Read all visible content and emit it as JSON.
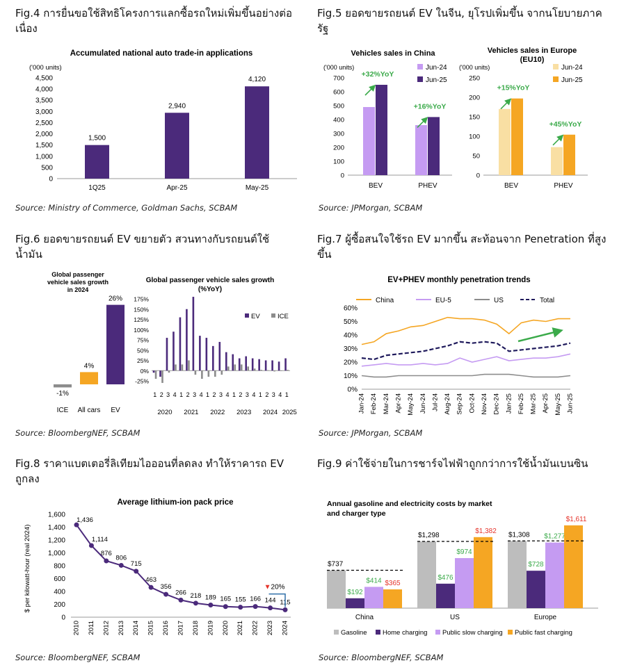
{
  "colors": {
    "purple": "#4B2A7B",
    "lavender": "#C59BF2",
    "orange": "#F5A623",
    "grey": "#BDBDBD",
    "cream": "#F9DFA3",
    "green": "#3BAA4A",
    "red": "#E5332A",
    "navy": "#1F1A5C",
    "midgrey": "#8C8C8C"
  },
  "fig4": {
    "title": "Fig.4 การยื่นขอใช้สิทธิโครงการแลกซื้อรถใหม่เพิ่มขึ้นอย่างต่อเนื่อง",
    "source": "Source: Ministry of Commerce, Goldman Sachs, SCBAM"
  },
  "fig5": {
    "title": "Fig.5 ยอดขายรถยนต์ EV ในจีน, ยุโรปเพิ่มขึ้น จากนโยบายภาครัฐ",
    "source": "Source: JPMorgan, SCBAM"
  },
  "fig6": {
    "title": "Fig.6 ยอดขายรถยนต์ EV ขยายตัว สวนทางกับรถยนต์ใช้น้ำมัน",
    "source": "Source: BloombergNEF, SCBAM"
  },
  "fig7": {
    "title": "Fig.7 ผู้ซื้อสนใจใช้รถ EV มากขึ้น สะท้อนจาก Penetration ที่สูงขึ้น",
    "source": "Source: JPMorgan, SCBAM"
  },
  "fig8": {
    "title": "Fig.8 ราคาแบตเตอรี่ลิเทียมไอออนที่ลดลง ทำให้ราคารถ EV ถูกลง",
    "source": "Source: BloombergNEF, SCBAM"
  },
  "fig9": {
    "title": "Fig.9 ค่าใช้จ่ายในการชาร์จไฟฟ้าถูกกว่าการใช้น้ำมันเบนซิน",
    "source": "Source: BloombergNEF, SCBAM"
  },
  "chart_data": [
    {
      "id": "c4",
      "type": "bar",
      "title": "Accumulated national auto trade-in applications",
      "ylabel": "('000 units)",
      "categories": [
        "1Q25",
        "Apr-25",
        "May-25"
      ],
      "values": [
        1500,
        2940,
        4120
      ],
      "labels": [
        "1,500",
        "2,940",
        "4,120"
      ],
      "ylim": [
        0,
        4500
      ],
      "yticks": [
        "0",
        "500",
        "1,000",
        "1,500",
        "2,000",
        "2,500",
        "3,000",
        "3,500",
        "4,000",
        "4,500"
      ]
    },
    {
      "id": "c5a",
      "type": "bar",
      "title": "Vehicles sales in China",
      "ylabel": "('000 units)",
      "categories": [
        "BEV",
        "PHEV"
      ],
      "series": [
        {
          "name": "Jun-24",
          "values": [
            490,
            360
          ]
        },
        {
          "name": "Jun-25",
          "values": [
            650,
            418
          ]
        }
      ],
      "ylim": [
        0,
        700
      ],
      "yticks": [
        "0",
        "100",
        "200",
        "300",
        "400",
        "500",
        "600",
        "700"
      ],
      "annotations": [
        "+32%YoY",
        "+16%YoY"
      ]
    },
    {
      "id": "c5b",
      "type": "bar",
      "title": "Vehicles sales in Europe (EU10)",
      "ylabel": "('000 units)",
      "categories": [
        "BEV",
        "PHEV"
      ],
      "series": [
        {
          "name": "Jun-24",
          "values": [
            170,
            72
          ]
        },
        {
          "name": "Jun-25",
          "values": [
            197,
            104
          ]
        }
      ],
      "ylim": [
        0,
        250
      ],
      "yticks": [
        "0",
        "50",
        "100",
        "150",
        "200",
        "250"
      ],
      "annotations": [
        "+15%YoY",
        "+45%YoY"
      ]
    },
    {
      "id": "c6a",
      "type": "bar",
      "title": "Global passenger vehicle sales growth in 2024",
      "categories": [
        "ICE",
        "All cars",
        "EV"
      ],
      "values": [
        -1,
        4,
        26
      ],
      "labels": [
        "-1%",
        "4%",
        "26%"
      ]
    },
    {
      "id": "c6b",
      "type": "bar",
      "title": "Global passenger vehicle sales growth (%YoY)",
      "yticks": [
        "-25%",
        "0%",
        "25%",
        "50%",
        "75%",
        "100%",
        "125%",
        "150%",
        "175%"
      ],
      "ylim": [
        -25,
        175
      ],
      "quarters": [
        "1",
        "2",
        "3",
        "4",
        "1",
        "2",
        "3",
        "4",
        "1",
        "2",
        "3",
        "4",
        "1",
        "2",
        "3",
        "4",
        "1",
        "2",
        "3",
        "4",
        "1"
      ],
      "years": [
        "2020",
        "2021",
        "2022",
        "2023",
        "2024",
        "2025"
      ],
      "series": [
        {
          "name": "EV",
          "values": [
            -5,
            -15,
            80,
            95,
            130,
            150,
            180,
            85,
            80,
            60,
            70,
            45,
            40,
            30,
            35,
            30,
            28,
            25,
            25,
            22,
            30
          ]
        },
        {
          "name": "ICE",
          "values": [
            -20,
            -30,
            -5,
            15,
            15,
            25,
            -10,
            -20,
            -15,
            -15,
            -10,
            10,
            15,
            15,
            10,
            5,
            2,
            1,
            -2,
            -1,
            2
          ]
        }
      ]
    },
    {
      "id": "c7",
      "type": "line",
      "title": "EV+PHEV monthly penetration trends",
      "categories": [
        "Jan-24",
        "Feb-24",
        "Mar-24",
        "Apr-24",
        "May-24",
        "Jun-24",
        "Jul-24",
        "Aug-24",
        "Sep-24",
        "Oct-24",
        "Nov-24",
        "Dec-24",
        "Jan-25",
        "Feb-25",
        "Mar-25",
        "Apr-25",
        "May-25",
        "Jun-25"
      ],
      "ylim": [
        0,
        60
      ],
      "yticks": [
        "0%",
        "10%",
        "20%",
        "30%",
        "40%",
        "50%",
        "60%"
      ],
      "series": [
        {
          "name": "China",
          "values": [
            33,
            35,
            41,
            43,
            46,
            47,
            50,
            53,
            52,
            52,
            51,
            48,
            41,
            49,
            51,
            50,
            52,
            52
          ]
        },
        {
          "name": "EU-5",
          "values": [
            17,
            18,
            19,
            18,
            18,
            19,
            18,
            19,
            23,
            20,
            22,
            24,
            21,
            22,
            23,
            23,
            24,
            26
          ]
        },
        {
          "name": "US",
          "values": [
            10,
            9,
            9,
            10,
            10,
            10,
            10,
            10,
            10,
            10,
            11,
            11,
            11,
            10,
            9,
            9,
            9,
            10
          ]
        },
        {
          "name": "Total",
          "values": [
            23,
            22,
            25,
            26,
            27,
            28,
            30,
            32,
            35,
            34,
            35,
            34,
            28,
            29,
            30,
            31,
            32,
            34
          ]
        }
      ]
    },
    {
      "id": "c8",
      "type": "line",
      "title": "Average lithium-ion pack price",
      "ylabel": "$ per kilowatt-hour (real 2024)",
      "categories": [
        "2010",
        "2011",
        "2012",
        "2013",
        "2014",
        "2015",
        "2016",
        "2017",
        "2018",
        "2019",
        "2020",
        "2021",
        "2022",
        "2023",
        "2024"
      ],
      "values": [
        1436,
        1114,
        876,
        806,
        715,
        463,
        356,
        266,
        218,
        189,
        165,
        155,
        166,
        144,
        115
      ],
      "labels": [
        "1,436",
        "1,114",
        "876",
        "806",
        "715",
        "463",
        "356",
        "266",
        "218",
        "189",
        "165",
        "155",
        "166",
        "144",
        "115"
      ],
      "ylim": [
        0,
        1600
      ],
      "yticks": [
        "0",
        "200",
        "400",
        "600",
        "800",
        "1,000",
        "1,200",
        "1,400",
        "1,600"
      ],
      "annotation": "▼20%"
    },
    {
      "id": "c9",
      "type": "bar",
      "title": "Annual gasoline and electricity costs by market and charger type",
      "categories": [
        "China",
        "US",
        "Europe"
      ],
      "series": [
        {
          "name": "Gasoline",
          "values": [
            737,
            1298,
            1308
          ]
        },
        {
          "name": "Home charging",
          "values": [
            192,
            476,
            728
          ]
        },
        {
          "name": "Public slow charging",
          "values": [
            414,
            974,
            1277
          ]
        },
        {
          "name": "Public fast charging",
          "values": [
            365,
            1382,
            1611
          ]
        }
      ],
      "labels": [
        [
          "$737",
          "$192",
          "$414",
          "$365"
        ],
        [
          "$1,298",
          "$476",
          "$974",
          "$1,382"
        ],
        [
          "$1,308",
          "$728",
          "$1,277",
          "$1,611"
        ]
      ],
      "ylim": [
        0,
        1650
      ]
    }
  ]
}
